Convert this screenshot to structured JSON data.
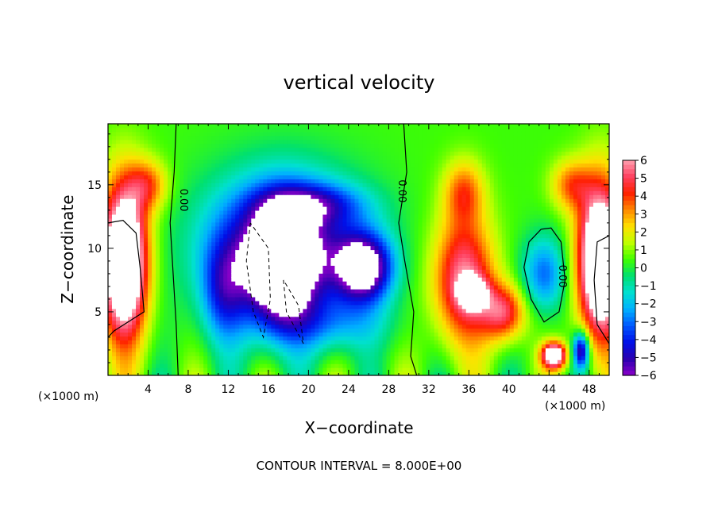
{
  "chart_data": {
    "type": "heatmap",
    "title": "vertical velocity",
    "xlabel": "X−coordinate",
    "ylabel": "Z−coordinate",
    "x_unit": "(×1000 m)",
    "x_unit_right": "(×1000 m)",
    "xlim": [
      0,
      50
    ],
    "ylim": [
      0,
      19.8
    ],
    "x_ticks": [
      4,
      8,
      12,
      16,
      20,
      24,
      28,
      32,
      36,
      40,
      44,
      48
    ],
    "y_ticks": [
      5,
      10,
      15
    ],
    "colorbar": {
      "min": -6,
      "max": 6,
      "tick_labels": [
        "6",
        "5",
        "4",
        "3",
        "2",
        "1",
        "0",
        "−1",
        "−2",
        "−3",
        "−4",
        "−5",
        "−6"
      ]
    },
    "contour_labels": [
      "0.00",
      "0.00",
      "0.00"
    ],
    "contour_interval_text": "CONTOUR INTERVAL = 8.000E+00",
    "features": [
      {
        "label": "updraft",
        "x": 1.8,
        "z": 8,
        "value": 8
      },
      {
        "label": "updraft",
        "x": 48.9,
        "z": 8,
        "value": 8
      },
      {
        "label": "downdraft",
        "x": 17.5,
        "z": 9,
        "value": -8
      },
      {
        "label": "downdraft",
        "x": 25.5,
        "z": 8.5,
        "value": -6
      },
      {
        "label": "updraft",
        "x": 36.5,
        "z": 7,
        "value": 6.5
      },
      {
        "label": "updraft",
        "x": 44.5,
        "z": 1.5,
        "value": 6
      }
    ]
  },
  "colors": {
    "background": "#ffffff",
    "ramp": [
      "#8a00c8",
      "#2a00b0",
      "#0010e8",
      "#0058ff",
      "#00b0ff",
      "#00e0d0",
      "#00e070",
      "#40ff00",
      "#c0ff00",
      "#ffe000",
      "#ff8800",
      "#ff2000",
      "#ff4060",
      "#ffa0b0"
    ]
  }
}
